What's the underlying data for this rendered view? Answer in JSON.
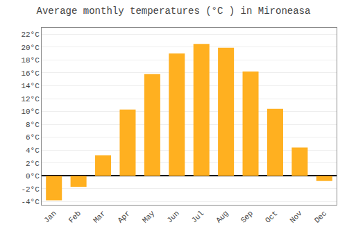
{
  "chart_data": {
    "type": "bar",
    "title": "Average monthly temperatures (°C ) in Mironeasa",
    "categories": [
      "Jan",
      "Feb",
      "Mar",
      "Apr",
      "May",
      "Jun",
      "Jul",
      "Aug",
      "Sep",
      "Oct",
      "Nov",
      "Dec"
    ],
    "values": [
      -3.8,
      -1.7,
      3.2,
      10.3,
      15.8,
      19.0,
      20.5,
      19.9,
      16.2,
      10.4,
      4.4,
      -0.8
    ],
    "color": "#FFB020",
    "ylim": [
      -4.5,
      23
    ],
    "yticks": [
      {
        "value": -4,
        "label": "-4°C"
      },
      {
        "value": -2,
        "label": "-2°C"
      },
      {
        "value": 0,
        "label": "0°C"
      },
      {
        "value": 2,
        "label": "2°C"
      },
      {
        "value": 4,
        "label": "4°C"
      },
      {
        "value": 6,
        "label": "6°C"
      },
      {
        "value": 8,
        "label": "8°C"
      },
      {
        "value": 10,
        "label": "10°C"
      },
      {
        "value": 12,
        "label": "12°C"
      },
      {
        "value": 14,
        "label": "14°C"
      },
      {
        "value": 16,
        "label": "16°C"
      },
      {
        "value": 18,
        "label": "18°C"
      },
      {
        "value": 20,
        "label": "20°C"
      },
      {
        "value": 22,
        "label": "22°C"
      }
    ],
    "grid": true
  }
}
